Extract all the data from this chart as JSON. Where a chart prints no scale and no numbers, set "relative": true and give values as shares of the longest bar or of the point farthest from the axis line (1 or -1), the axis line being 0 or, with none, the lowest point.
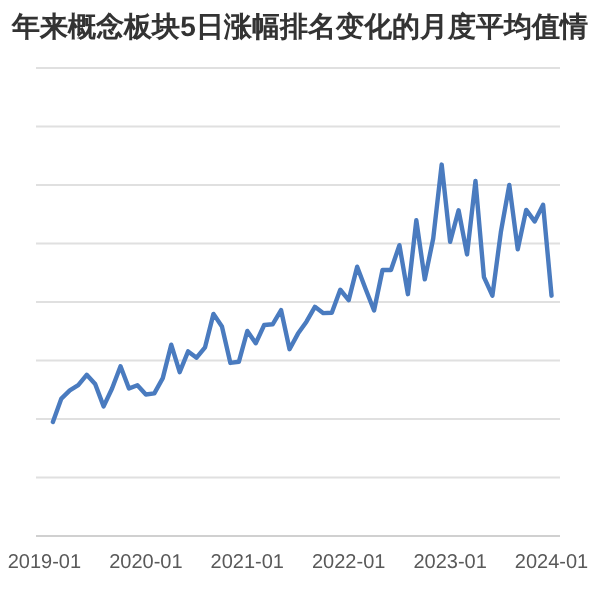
{
  "chart_data": {
    "type": "line",
    "title": "年来概念板块5日涨幅排名变化的月度平均值情",
    "x": [
      "2019-02",
      "2019-03",
      "2019-04",
      "2019-05",
      "2019-06",
      "2019-07",
      "2019-08",
      "2019-09",
      "2019-10",
      "2019-11",
      "2019-12",
      "2020-01",
      "2020-02",
      "2020-03",
      "2020-04",
      "2020-05",
      "2020-06",
      "2020-07",
      "2020-08",
      "2020-09",
      "2020-10",
      "2020-11",
      "2020-12",
      "2021-01",
      "2021-02",
      "2021-03",
      "2021-04",
      "2021-05",
      "2021-06",
      "2021-07",
      "2021-08",
      "2021-09",
      "2021-10",
      "2021-11",
      "2021-12",
      "2022-01",
      "2022-02",
      "2022-03",
      "2022-04",
      "2022-05",
      "2022-06",
      "2022-07",
      "2022-08",
      "2022-09",
      "2022-10",
      "2022-11",
      "2022-12",
      "2023-01",
      "2023-02",
      "2023-03",
      "2023-04",
      "2023-05",
      "2023-06",
      "2023-07",
      "2023-08",
      "2023-09",
      "2023-10",
      "2023-11",
      "2023-12",
      "2024-01"
    ],
    "series": [
      {
        "color": "#4a7bbf",
        "values": [
          0.307,
          0.37,
          0.392,
          0.406,
          0.434,
          0.409,
          0.349,
          0.397,
          0.457,
          0.397,
          0.406,
          0.381,
          0.384,
          0.425,
          0.515,
          0.441,
          0.497,
          0.48,
          0.508,
          0.598,
          0.564,
          0.466,
          0.469,
          0.552,
          0.519,
          0.568,
          0.57,
          0.608,
          0.503,
          0.545,
          0.577,
          0.617,
          0.6,
          0.601,
          0.663,
          0.635,
          0.725,
          0.665,
          0.607,
          0.716,
          0.716,
          0.783,
          0.651,
          0.85,
          0.691,
          0.801,
          1,
          0.792,
          0.877,
          0.758,
          0.956,
          0.697,
          0.647,
          0.818,
          0.945,
          0.772,
          0.878,
          0.847,
          0.892,
          0.647
        ]
      }
    ],
    "relative": true,
    "xlim": [
      "2018-12",
      "2024-02"
    ],
    "xticks": [
      "2019-01",
      "2020-01",
      "2021-01",
      "2022-01",
      "2023-01",
      "2024-01"
    ],
    "grid": "y",
    "tick_labels": "x",
    "marker": "none",
    "line_style": "solid"
  }
}
